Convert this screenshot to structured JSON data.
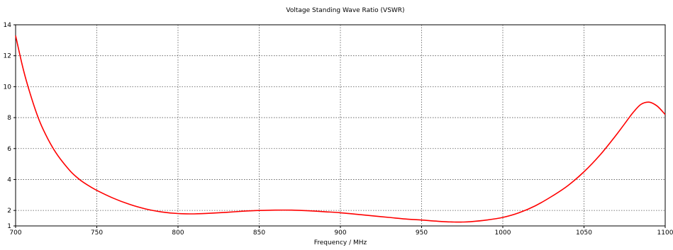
{
  "chart_data": {
    "type": "line",
    "title": "Voltage Standing Wave Ratio (VSWR)",
    "xlabel": "Frequency / MHz",
    "ylabel": "",
    "xlim": [
      700,
      1100
    ],
    "ylim": [
      1,
      14
    ],
    "x_ticks": [
      "700",
      "750",
      "800",
      "850",
      "900",
      "950",
      "1000",
      "1050",
      "1100"
    ],
    "y_ticks": [
      "1",
      "2",
      "4",
      "6",
      "8",
      "10",
      "12",
      "14"
    ],
    "grid": true,
    "series_color": "#ff0000",
    "series": [
      {
        "x": [
          700,
          705,
          710,
          715,
          720,
          725,
          730,
          735,
          740,
          745,
          750,
          760,
          770,
          780,
          790,
          800,
          810,
          820,
          830,
          840,
          850,
          860,
          870,
          880,
          890,
          900,
          910,
          920,
          930,
          940,
          950,
          960,
          970,
          975,
          980,
          990,
          1000,
          1010,
          1020,
          1030,
          1040,
          1050,
          1060,
          1070,
          1075,
          1080,
          1085,
          1090,
          1095,
          1100
        ],
        "y": [
          13.3,
          11.0,
          9.2,
          7.7,
          6.6,
          5.7,
          5.0,
          4.4,
          3.95,
          3.6,
          3.3,
          2.8,
          2.4,
          2.1,
          1.9,
          1.8,
          1.78,
          1.82,
          1.88,
          1.95,
          2.0,
          2.02,
          2.02,
          1.98,
          1.92,
          1.85,
          1.75,
          1.65,
          1.55,
          1.45,
          1.38,
          1.3,
          1.25,
          1.25,
          1.27,
          1.38,
          1.55,
          1.85,
          2.3,
          2.9,
          3.6,
          4.5,
          5.6,
          6.9,
          7.6,
          8.3,
          8.85,
          9.0,
          8.75,
          8.2
        ]
      }
    ]
  }
}
